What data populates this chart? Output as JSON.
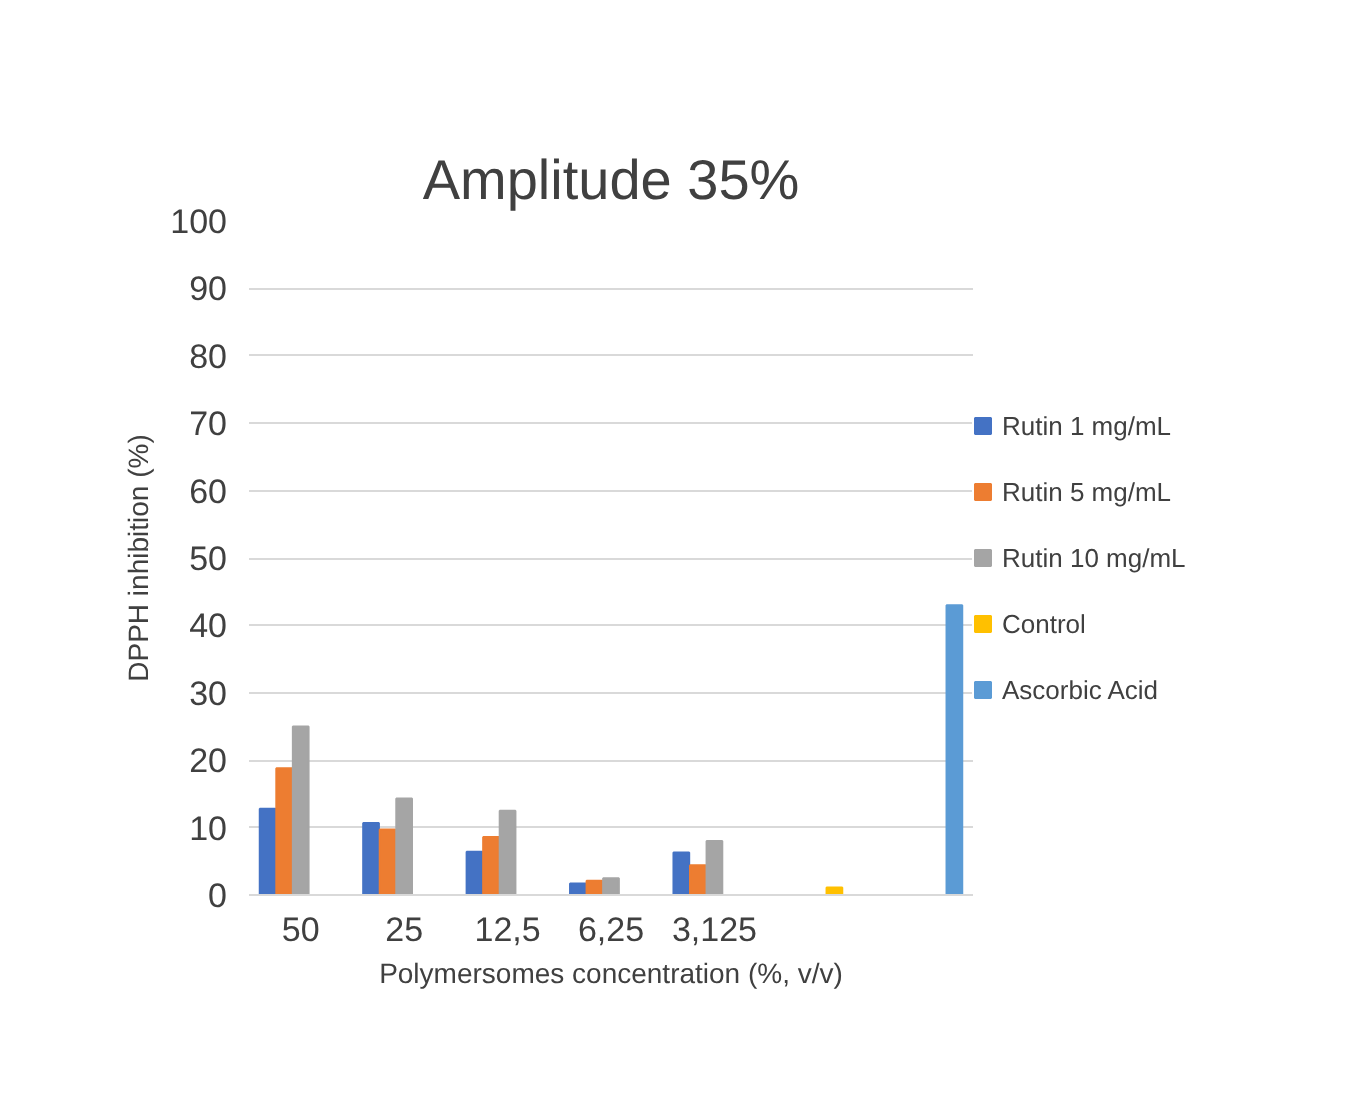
{
  "chart_data": {
    "type": "bar",
    "title": "Amplitude 35%",
    "xlabel": "Polymersomes concentration (%, v/v)",
    "ylabel": "DPPH inhibition (%)",
    "categories": [
      "50",
      "25",
      "12,5",
      "6,25",
      "3,125",
      null,
      null
    ],
    "series": [
      {
        "name": "Rutin 1 mg/mL",
        "color": "#4472c4",
        "values": [
          12.8,
          10.7,
          6.4,
          1.7,
          6.3,
          null,
          null
        ]
      },
      {
        "name": "Rutin 5 mg/mL",
        "color": "#ed7d31",
        "values": [
          18.8,
          9.7,
          8.6,
          2.1,
          4.4,
          null,
          null
        ]
      },
      {
        "name": "Rutin 10 mg/mL",
        "color": "#a5a5a5",
        "values": [
          25,
          14.3,
          12.5,
          2.5,
          8.0,
          null,
          null
        ]
      },
      {
        "name": "Control",
        "color": "#ffc000",
        "values": [
          null,
          null,
          null,
          null,
          null,
          1.1,
          null
        ]
      },
      {
        "name": "Ascorbic Acid",
        "color": "#5b9bd5",
        "values": [
          null,
          null,
          null,
          null,
          null,
          null,
          43.0
        ]
      }
    ],
    "ylim": [
      0,
      100
    ],
    "yticks": [
      0,
      10,
      20,
      30,
      40,
      50,
      60,
      70,
      80,
      90,
      100
    ],
    "grid": "y",
    "legend": "right"
  }
}
